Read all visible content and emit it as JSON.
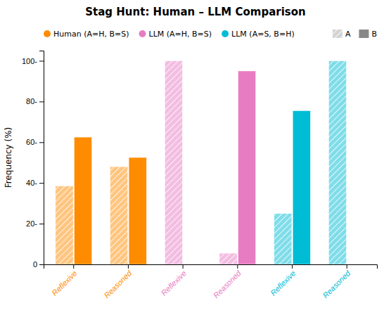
{
  "chart_data": {
    "type": "bar",
    "title": "Stag Hunt:  Human – LLM Comparison",
    "ylabel": "Frequency (%)",
    "categories": [
      "Reflexive",
      "Reasoned",
      "Reflexive",
      "Reasoned",
      "Reflexive",
      "Reasoned"
    ],
    "category_colors": [
      "#FF8C00",
      "#FF8C00",
      "#E87CC3",
      "#E87CC3",
      "#00BCD4",
      "#00BCD4"
    ],
    "series": [
      {
        "name": "A",
        "color": "#aaaaaa",
        "colors": [
          "#FF8C00",
          "#FF8C00",
          "#E87CC3",
          "#E87CC3",
          "#00BCD4",
          "#00BCD4"
        ],
        "values": [
          38.5,
          48.0,
          100.0,
          5.5,
          25.0,
          100.0
        ]
      },
      {
        "name": "B",
        "color": "#888888",
        "colors": [
          "#FF8C00",
          "#FF8C00",
          "#E87CC3",
          "#E87CC3",
          "#00BCD4",
          "#00BCD4"
        ],
        "values": [
          62.5,
          52.5,
          0.0,
          95.0,
          75.5,
          0.0
        ]
      }
    ],
    "groups": [
      {
        "name": "Human (A=H, B=S)",
        "color": "#FF8C00"
      },
      {
        "name": "LLM (A=H, B=S)",
        "color": "#E87CC3"
      },
      {
        "name": "LLM (A=S, B=H)",
        "color": "#00BCD4"
      }
    ],
    "ylim": [
      0,
      105
    ],
    "yticks": [
      0,
      {
        "value": 20,
        "label": "20-"
      },
      {
        "value": 40,
        "label": "40-"
      },
      {
        "value": 60,
        "label": "60-"
      },
      {
        "value": 80,
        "label": "80-"
      },
      {
        "value": 100,
        "label": "100-"
      }
    ],
    "grid": false,
    "legend": "top"
  }
}
